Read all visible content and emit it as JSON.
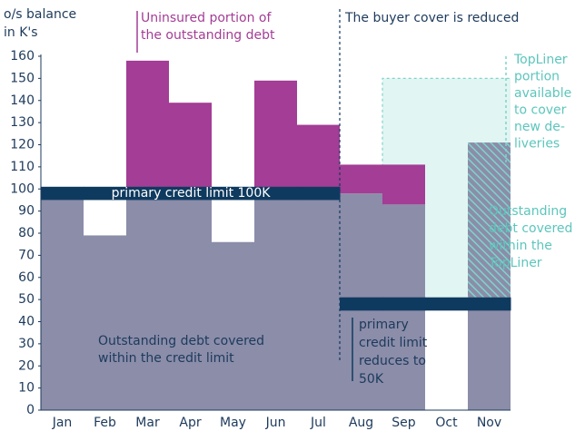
{
  "chart_data": {
    "type": "bar",
    "y_label": [
      "o/s balance",
      "in K's"
    ],
    "categories": [
      "Jan",
      "Feb",
      "Mar",
      "Apr",
      "May",
      "Jun",
      "Jul",
      "Aug",
      "Sep",
      "Oct",
      "Nov"
    ],
    "series": [
      {
        "name": "Outstanding debt covered within the credit limit",
        "color": "#8b8da9",
        "values": [
          95,
          79,
          100,
          100,
          76,
          100,
          100,
          98,
          93,
          null,
          51
        ]
      },
      {
        "name": "Uninsured portion of the outstanding debt",
        "color": "#a33d95",
        "values": [
          null,
          null,
          58,
          39,
          null,
          49,
          29,
          13,
          18,
          null,
          null
        ]
      },
      {
        "name": "Outstanding debt covered within the TopLiner",
        "color": "#7fd4cc",
        "values": [
          null,
          null,
          null,
          null,
          null,
          null,
          null,
          null,
          null,
          null,
          70
        ]
      }
    ],
    "credit_limit": {
      "color": "#0f3a5f",
      "values": [
        100,
        100,
        100,
        100,
        100,
        100,
        100,
        50,
        50,
        50,
        50
      ]
    },
    "topliner_limit": {
      "color": "#e1f5f3",
      "values": [
        null,
        null,
        null,
        null,
        null,
        null,
        null,
        null,
        150,
        150,
        150
      ]
    },
    "ylim": [
      0,
      160
    ],
    "yticks": [
      0,
      10,
      20,
      30,
      40,
      50,
      60,
      70,
      80,
      90,
      100,
      110,
      120,
      130,
      140,
      150,
      160
    ],
    "annotations": {
      "uninsured": [
        "Uninsured portion of",
        "the outstanding debt"
      ],
      "reduced": [
        "The buyer cover is reduced"
      ],
      "topliner": [
        "TopLiner",
        "portion",
        "available",
        "to cover",
        "new de-",
        "liveries"
      ],
      "topliner_covered": [
        "Outstanding",
        "debt covered",
        "within the",
        "TopLiner"
      ],
      "limit_100": [
        "primary credit limit 100K"
      ],
      "limit_50": [
        "primary",
        "credit limit",
        "reduces to",
        "50K"
      ],
      "covered": [
        "Outstanding debt covered",
        "within the credit limit"
      ]
    }
  }
}
